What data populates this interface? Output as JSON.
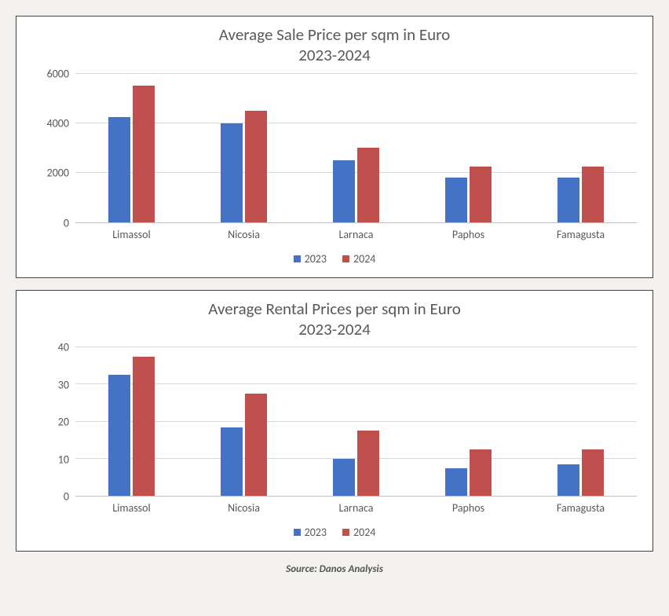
{
  "series_colors": {
    "s1": "#4472c4",
    "s2": "#c0504d"
  },
  "grid_color": "#d9d9d9",
  "text_color": "#595959",
  "charts": [
    {
      "title_line1": "Average Sale Price per sqm in Euro",
      "title_line2": "2023-2024",
      "categories": [
        "Limassol",
        "Nicosia",
        "Larnaca",
        "Paphos",
        "Famagusta"
      ],
      "series": [
        {
          "name": "2023",
          "color": "#4472c4",
          "values": [
            4250,
            4000,
            2500,
            1800,
            1800
          ]
        },
        {
          "name": "2024",
          "color": "#c0504d",
          "values": [
            5500,
            4500,
            3000,
            2250,
            2250
          ]
        }
      ],
      "y_ticks": [
        0,
        2000,
        4000,
        6000
      ],
      "y_max": 6000
    },
    {
      "title_line1": "Average Rental Prices per sqm in Euro",
      "title_line2": "2023-2024",
      "categories": [
        "Limassol",
        "Nicosia",
        "Larnaca",
        "Paphos",
        "Famagusta"
      ],
      "series": [
        {
          "name": "2023",
          "color": "#4472c4",
          "values": [
            32.5,
            18.5,
            10,
            7.5,
            8.5
          ]
        },
        {
          "name": "2024",
          "color": "#c0504d",
          "values": [
            37.5,
            27.5,
            17.5,
            12.5,
            12.5
          ]
        }
      ],
      "y_ticks": [
        0,
        10,
        20,
        30,
        40
      ],
      "y_max": 40
    }
  ],
  "legend_labels": [
    "2023",
    "2024"
  ],
  "source_text": "Source: Danos Analysis"
}
